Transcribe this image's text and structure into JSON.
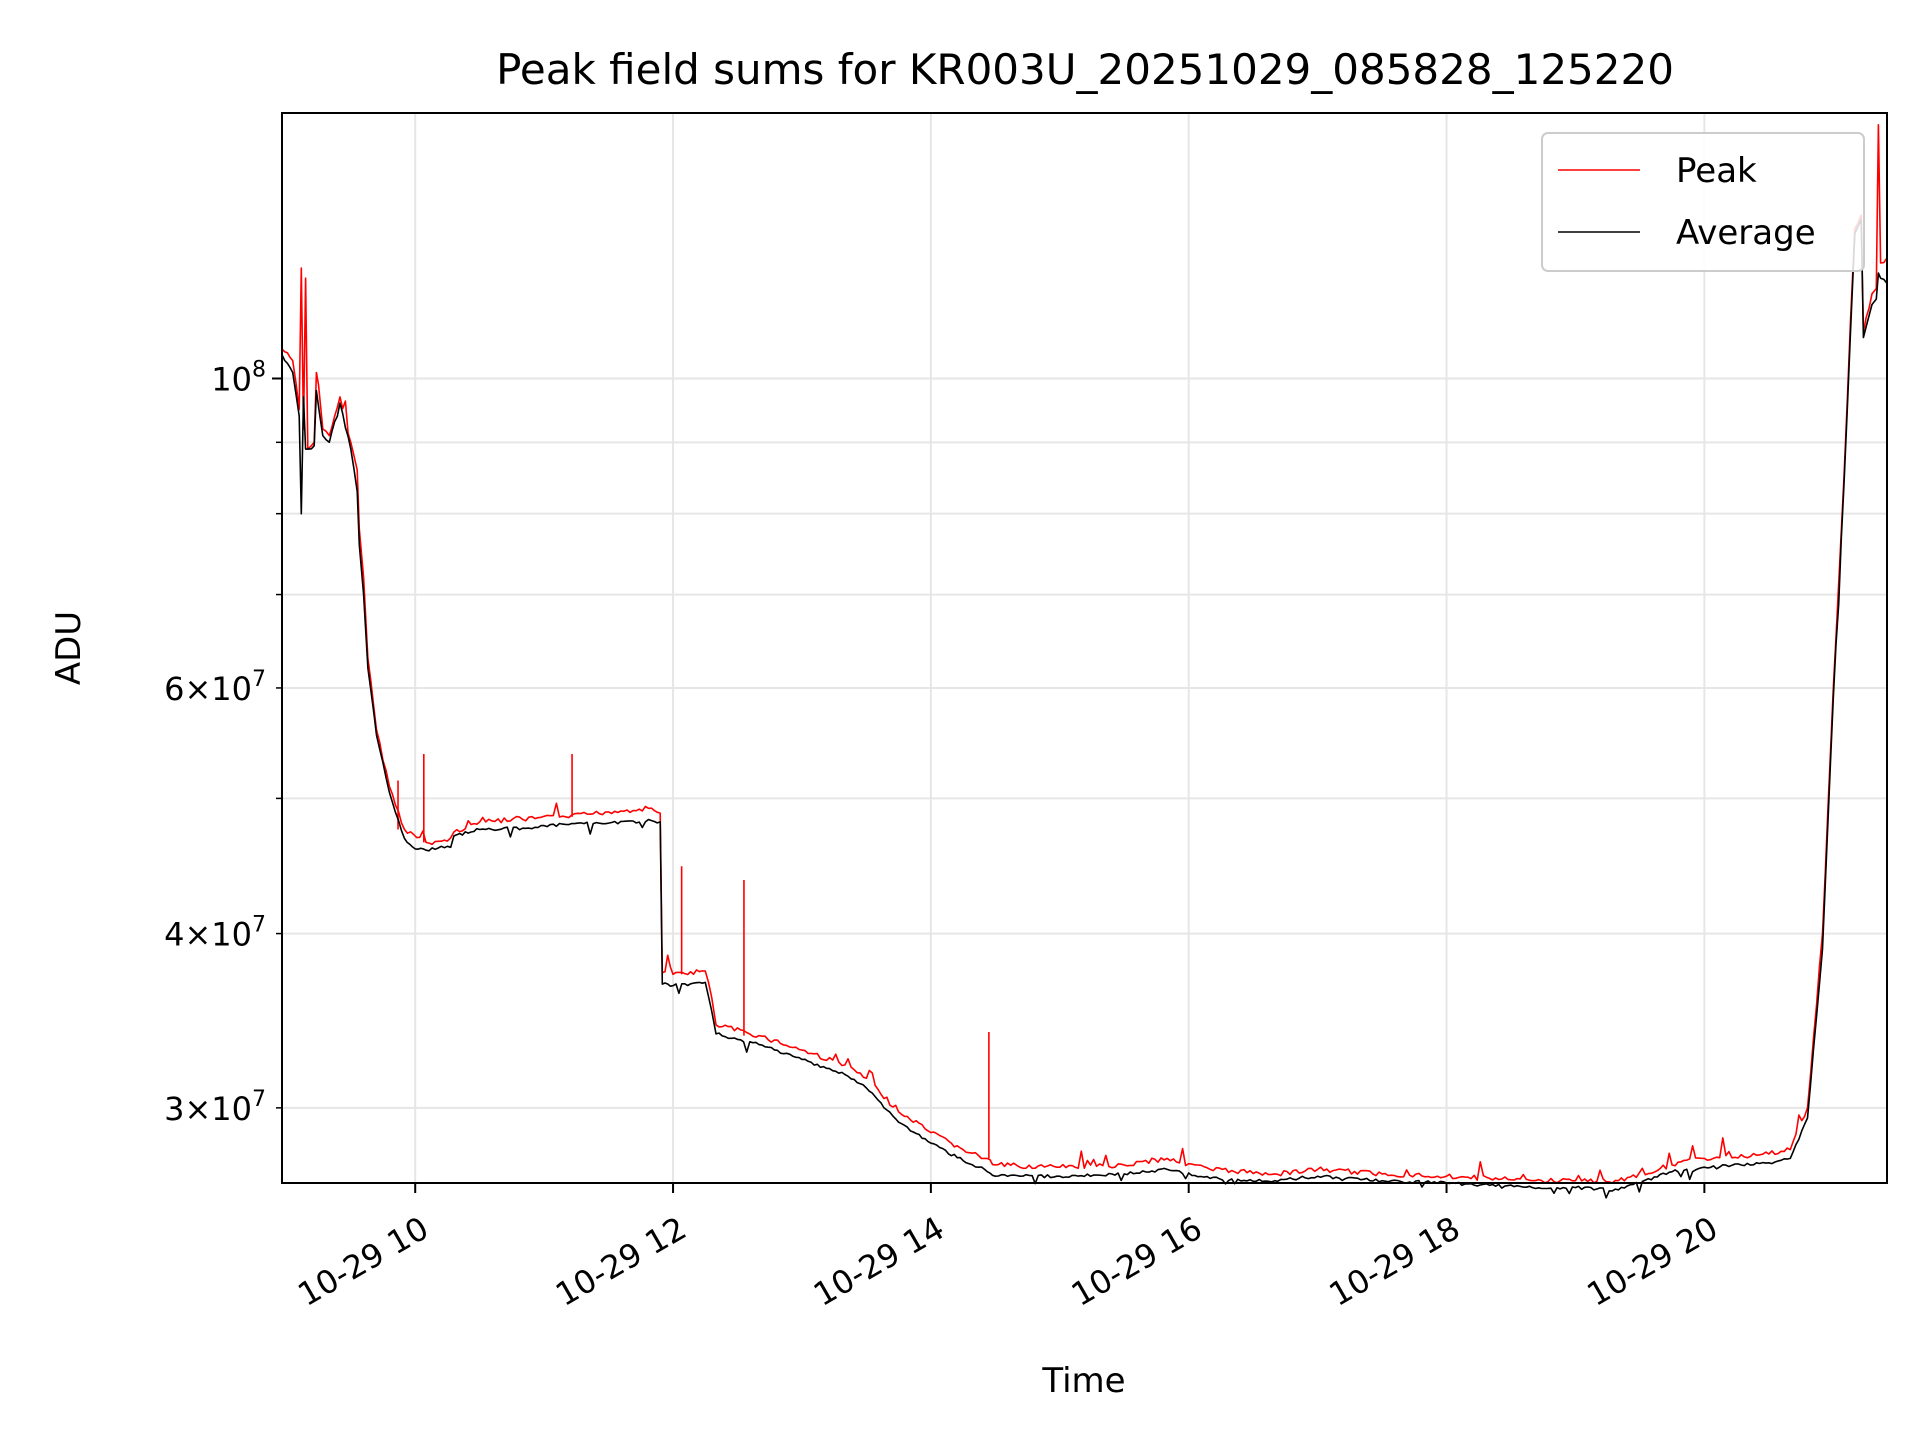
{
  "chart_data": {
    "type": "line",
    "title": "Peak field sums for KR003U_20251029_085828_125220",
    "xlabel": "Time",
    "ylabel": "ADU",
    "yscale": "log",
    "grid": true,
    "legend_position": "top-right",
    "xlim": [
      "2025-10-29 08:58",
      "2025-10-29 21:25"
    ],
    "ylim": [
      26500000,
      155000000
    ],
    "x_ticks": [
      {
        "value": "2025-10-29 10:00",
        "label": "10-29 10"
      },
      {
        "value": "2025-10-29 12:00",
        "label": "10-29 12"
      },
      {
        "value": "2025-10-29 14:00",
        "label": "10-29 14"
      },
      {
        "value": "2025-10-29 16:00",
        "label": "10-29 16"
      },
      {
        "value": "2025-10-29 18:00",
        "label": "10-29 18"
      },
      {
        "value": "2025-10-29 20:00",
        "label": "10-29 20"
      }
    ],
    "y_major_ticks": [
      {
        "value": 100000000,
        "base": "10",
        "exp": "8"
      }
    ],
    "y_minor_ticks": [
      {
        "value": 30000000,
        "coef": "3",
        "base": "10",
        "exp": "7"
      },
      {
        "value": 40000000,
        "coef": "4",
        "base": "10",
        "exp": "7"
      },
      {
        "value": 60000000,
        "coef": "6",
        "base": "10",
        "exp": "7"
      }
    ],
    "y_minor_gridlines": [
      30000000,
      40000000,
      50000000,
      60000000,
      70000000,
      80000000,
      90000000
    ],
    "series": [
      {
        "name": "Peak",
        "color": "#ff0000",
        "points": [
          [
            "2025-10-29 08:58",
            105000000
          ],
          [
            "2025-10-29 09:03",
            103000000
          ],
          [
            "2025-10-29 09:06",
            95000000
          ],
          [
            "2025-10-29 09:07",
            120000000
          ],
          [
            "2025-10-29 09:08",
            92000000
          ],
          [
            "2025-10-29 09:09",
            118000000
          ],
          [
            "2025-10-29 09:10",
            89000000
          ],
          [
            "2025-10-29 09:13",
            90000000
          ],
          [
            "2025-10-29 09:14",
            101000000
          ],
          [
            "2025-10-29 09:15",
            99000000
          ],
          [
            "2025-10-29 09:17",
            92000000
          ],
          [
            "2025-10-29 09:20",
            91000000
          ],
          [
            "2025-10-29 09:25",
            97000000
          ],
          [
            "2025-10-29 09:30",
            90000000
          ],
          [
            "2025-10-29 09:33",
            86000000
          ],
          [
            "2025-10-29 09:34",
            78000000
          ],
          [
            "2025-10-29 09:36",
            72000000
          ],
          [
            "2025-10-29 09:38",
            63000000
          ],
          [
            "2025-10-29 09:42",
            56000000
          ],
          [
            "2025-10-29 09:48",
            51000000
          ],
          [
            "2025-10-29 09:55",
            47500000
          ],
          [
            "2025-10-29 10:05",
            46500000
          ],
          [
            "2025-10-29 10:15",
            46600000
          ],
          [
            "2025-10-29 10:18",
            47300000
          ],
          [
            "2025-10-29 10:30",
            48100000
          ],
          [
            "2025-10-29 10:50",
            48300000
          ],
          [
            "2025-10-29 11:10",
            48500000
          ],
          [
            "2025-10-29 11:30",
            48900000
          ],
          [
            "2025-10-29 11:50",
            49200000
          ],
          [
            "2025-10-29 11:54",
            48800000
          ],
          [
            "2025-10-29 11:55",
            37500000
          ],
          [
            "2025-10-29 12:00",
            37400000
          ],
          [
            "2025-10-29 12:15",
            37600000
          ],
          [
            "2025-10-29 12:18",
            36000000
          ],
          [
            "2025-10-29 12:20",
            34400000
          ],
          [
            "2025-10-29 12:40",
            33800000
          ],
          [
            "2025-10-29 13:00",
            33000000
          ],
          [
            "2025-10-29 13:20",
            32200000
          ],
          [
            "2025-10-29 13:30",
            31500000
          ],
          [
            "2025-10-29 13:45",
            29800000
          ],
          [
            "2025-10-29 14:00",
            28800000
          ],
          [
            "2025-10-29 14:15",
            28000000
          ],
          [
            "2025-10-29 14:25",
            27600000
          ],
          [
            "2025-10-29 14:30",
            27300000
          ],
          [
            "2025-10-29 15:00",
            27200000
          ],
          [
            "2025-10-29 15:30",
            27300000
          ],
          [
            "2025-10-29 15:50",
            27600000
          ],
          [
            "2025-10-29 16:10",
            27100000
          ],
          [
            "2025-10-29 16:40",
            26900000
          ],
          [
            "2025-10-29 17:00",
            27100000
          ],
          [
            "2025-10-29 17:30",
            26900000
          ],
          [
            "2025-10-29 18:00",
            26800000
          ],
          [
            "2025-10-29 18:20",
            26700000
          ],
          [
            "2025-10-29 18:40",
            26600000
          ],
          [
            "2025-10-29 19:00",
            26600000
          ],
          [
            "2025-10-29 19:20",
            26600000
          ],
          [
            "2025-10-29 19:45",
            27300000
          ],
          [
            "2025-10-29 20:00",
            27600000
          ],
          [
            "2025-10-29 20:30",
            27800000
          ],
          [
            "2025-10-29 20:40",
            28000000
          ],
          [
            "2025-10-29 20:48",
            30000000
          ],
          [
            "2025-10-29 20:55",
            40000000
          ],
          [
            "2025-10-29 21:00",
            60000000
          ],
          [
            "2025-10-29 21:05",
            85000000
          ],
          [
            "2025-10-29 21:08",
            110000000
          ],
          [
            "2025-10-29 21:10",
            128000000
          ],
          [
            "2025-10-29 21:13",
            131000000
          ],
          [
            "2025-10-29 21:14",
            108000000
          ],
          [
            "2025-10-29 21:18",
            115000000
          ],
          [
            "2025-10-29 21:20",
            116000000
          ],
          [
            "2025-10-29 21:21",
            152000000
          ],
          [
            "2025-10-29 21:22",
            121000000
          ],
          [
            "2025-10-29 21:25",
            122000000
          ]
        ],
        "spikes": [
          [
            "2025-10-29 09:52",
            51500000
          ],
          [
            "2025-10-29 10:04",
            53800000
          ],
          [
            "2025-10-29 11:13",
            53800000
          ],
          [
            "2025-10-29 12:04",
            44700000
          ],
          [
            "2025-10-29 12:33",
            43700000
          ],
          [
            "2025-10-29 14:27",
            34000000
          ]
        ]
      },
      {
        "name": "Average",
        "color": "#000000",
        "points": [
          [
            "2025-10-29 08:58",
            104000000
          ],
          [
            "2025-10-29 09:03",
            101000000
          ],
          [
            "2025-10-29 09:06",
            94000000
          ],
          [
            "2025-10-29 09:07",
            80000000
          ],
          [
            "2025-10-29 09:08",
            97000000
          ],
          [
            "2025-10-29 09:09",
            89000000
          ],
          [
            "2025-10-29 09:13",
            89500000
          ],
          [
            "2025-10-29 09:14",
            98000000
          ],
          [
            "2025-10-29 09:17",
            91000000
          ],
          [
            "2025-10-29 09:20",
            90000000
          ],
          [
            "2025-10-29 09:25",
            96000000
          ],
          [
            "2025-10-29 09:30",
            89000000
          ],
          [
            "2025-10-29 09:33",
            83000000
          ],
          [
            "2025-10-29 09:34",
            76000000
          ],
          [
            "2025-10-29 09:36",
            70000000
          ],
          [
            "2025-10-29 09:38",
            62000000
          ],
          [
            "2025-10-29 09:42",
            55500000
          ],
          [
            "2025-10-29 09:48",
            50500000
          ],
          [
            "2025-10-29 09:55",
            46800000
          ],
          [
            "2025-10-29 10:00",
            46000000
          ],
          [
            "2025-10-29 10:05",
            45900000
          ],
          [
            "2025-10-29 10:15",
            46200000
          ],
          [
            "2025-10-29 10:18",
            47000000
          ],
          [
            "2025-10-29 10:30",
            47500000
          ],
          [
            "2025-10-29 10:50",
            47600000
          ],
          [
            "2025-10-29 11:10",
            47900000
          ],
          [
            "2025-10-29 11:30",
            48000000
          ],
          [
            "2025-10-29 11:50",
            48200000
          ],
          [
            "2025-10-29 11:54",
            48100000
          ],
          [
            "2025-10-29 11:55",
            36800000
          ],
          [
            "2025-10-29 12:00",
            36700000
          ],
          [
            "2025-10-29 12:15",
            36900000
          ],
          [
            "2025-10-29 12:18",
            35200000
          ],
          [
            "2025-10-29 12:20",
            33900000
          ],
          [
            "2025-10-29 12:40",
            33300000
          ],
          [
            "2025-10-29 13:00",
            32500000
          ],
          [
            "2025-10-29 13:20",
            31700000
          ],
          [
            "2025-10-29 13:30",
            31000000
          ],
          [
            "2025-10-29 13:45",
            29300000
          ],
          [
            "2025-10-29 14:00",
            28300000
          ],
          [
            "2025-10-29 14:15",
            27500000
          ],
          [
            "2025-10-29 14:25",
            27100000
          ],
          [
            "2025-10-29 14:30",
            26800000
          ],
          [
            "2025-10-29 15:00",
            26800000
          ],
          [
            "2025-10-29 15:30",
            26900000
          ],
          [
            "2025-10-29 15:50",
            27100000
          ],
          [
            "2025-10-29 16:10",
            26700000
          ],
          [
            "2025-10-29 16:40",
            26600000
          ],
          [
            "2025-10-29 17:00",
            26800000
          ],
          [
            "2025-10-29 17:30",
            26600000
          ],
          [
            "2025-10-29 18:00",
            26500000
          ],
          [
            "2025-10-29 18:20",
            26400000
          ],
          [
            "2025-10-29 18:40",
            26300000
          ],
          [
            "2025-10-29 19:00",
            26300000
          ],
          [
            "2025-10-29 19:20",
            26200000
          ],
          [
            "2025-10-29 19:45",
            27000000
          ],
          [
            "2025-10-29 20:00",
            27200000
          ],
          [
            "2025-10-29 20:30",
            27400000
          ],
          [
            "2025-10-29 20:40",
            27600000
          ],
          [
            "2025-10-29 20:48",
            29500000
          ],
          [
            "2025-10-29 20:55",
            39000000
          ],
          [
            "2025-10-29 21:00",
            59000000
          ],
          [
            "2025-10-29 21:05",
            84000000
          ],
          [
            "2025-10-29 21:08",
            108000000
          ],
          [
            "2025-10-29 21:10",
            127000000
          ],
          [
            "2025-10-29 21:13",
            130000000
          ],
          [
            "2025-10-29 21:14",
            107000000
          ],
          [
            "2025-10-29 21:18",
            113000000
          ],
          [
            "2025-10-29 21:20",
            114000000
          ],
          [
            "2025-10-29 21:21",
            119000000
          ],
          [
            "2025-10-29 21:22",
            118000000
          ],
          [
            "2025-10-29 21:25",
            117000000
          ]
        ]
      }
    ]
  }
}
